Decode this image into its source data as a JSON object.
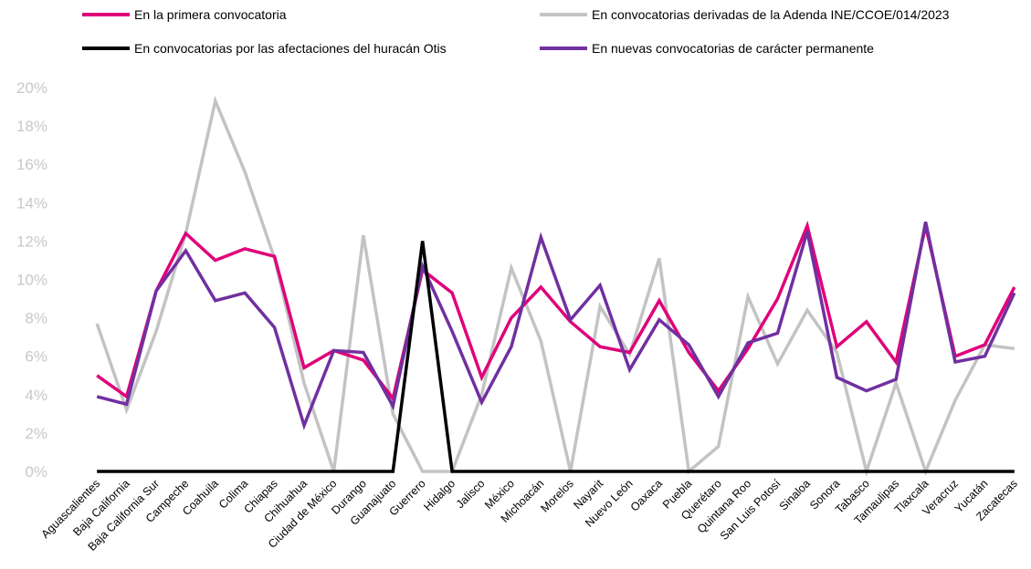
{
  "chart_data": {
    "type": "line",
    "ylim": [
      0,
      0.2
    ],
    "yticks": [
      "0%",
      "2%",
      "4%",
      "6%",
      "8%",
      "10%",
      "12%",
      "14%",
      "16%",
      "18%",
      "20%"
    ],
    "grid": false,
    "legend_position": "top",
    "categories": [
      "Aguascalientes",
      "Baja California",
      "Baja California Sur",
      "Campeche",
      "Coahuila",
      "Colima",
      "Chiapas",
      "Chihuahua",
      "Ciudad de México",
      "Durango",
      "Guanajuato",
      "Guerrero",
      "Hidalgo",
      "Jalisco",
      "México",
      "Michoacán",
      "Morelos",
      "Nayarit",
      "Nuevo León",
      "Oaxaca",
      "Puebla",
      "Querétaro",
      "Quintana Roo",
      "San Luis Potosí",
      "Sinaloa",
      "Sonora",
      "Tabasco",
      "Tamaulipas",
      "Tlaxcala",
      "Veracruz",
      "Yucatán",
      "Zacatecas"
    ],
    "series": [
      {
        "name": "En la primera convocatoria",
        "color": "#e0007a",
        "values": [
          0.05,
          0.039,
          0.094,
          0.124,
          0.11,
          0.116,
          0.112,
          0.054,
          0.063,
          0.058,
          0.038,
          0.105,
          0.093,
          0.049,
          0.08,
          0.096,
          0.078,
          0.065,
          0.062,
          0.089,
          0.062,
          0.042,
          0.064,
          0.09,
          0.128,
          0.065,
          0.078,
          0.057,
          0.128,
          0.06,
          0.066,
          0.096
        ]
      },
      {
        "name": "En convocatorias derivadas de la Adenda INE/CCOE/014/2023",
        "color": "#c3c3c3",
        "values": [
          0.077,
          0.032,
          0.073,
          0.124,
          0.193,
          0.156,
          0.111,
          0.046,
          0.0,
          0.123,
          0.03,
          0.0,
          0.0,
          0.04,
          0.106,
          0.068,
          0.0,
          0.086,
          0.061,
          0.111,
          0.0,
          0.013,
          0.091,
          0.056,
          0.084,
          0.062,
          0.0,
          0.046,
          0.0,
          0.037,
          0.066,
          0.064
        ]
      },
      {
        "name": "En convocatorias por las afectaciones del huracán Otis",
        "color": "#000000",
        "values": [
          0,
          0,
          0,
          0,
          0,
          0,
          0,
          0,
          0,
          0,
          0,
          0.12,
          0,
          0,
          0,
          0,
          0,
          0,
          0,
          0,
          0,
          0,
          0,
          0,
          0,
          0,
          0,
          0,
          0,
          0,
          0,
          0
        ]
      },
      {
        "name": "En nuevas convocatorias de carácter permanente",
        "color": "#7030a0",
        "values": [
          0.039,
          0.035,
          0.094,
          0.115,
          0.089,
          0.093,
          0.075,
          0.024,
          0.063,
          0.062,
          0.034,
          0.107,
          0.073,
          0.036,
          0.065,
          0.122,
          0.079,
          0.097,
          0.053,
          0.079,
          0.066,
          0.039,
          0.067,
          0.072,
          0.125,
          0.049,
          0.042,
          0.048,
          0.13,
          0.057,
          0.06,
          0.093
        ]
      }
    ]
  }
}
